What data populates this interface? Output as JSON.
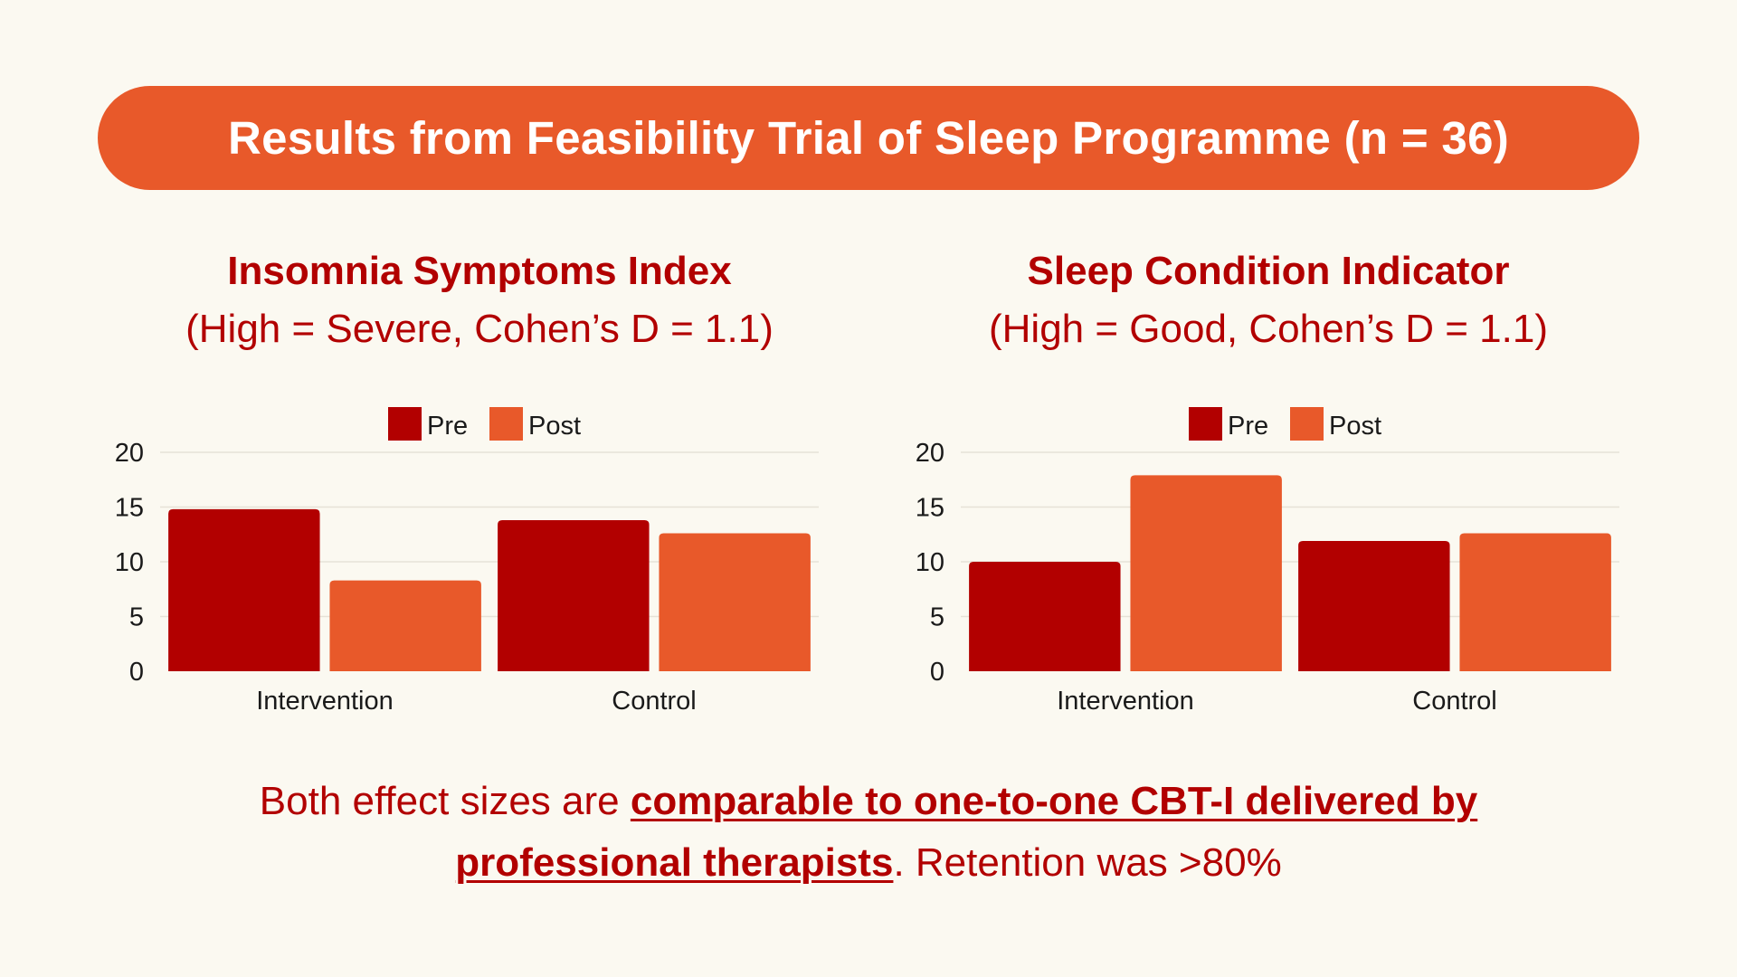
{
  "title": "Results from Feasibility Trial of Sleep Programme (n = 36)",
  "colors": {
    "pre": "#b20000",
    "post": "#e8592a",
    "text": "#b20000",
    "axis_text": "#1a1a1a",
    "grid": "#e6e2d8"
  },
  "charts": [
    {
      "heading": "Insomnia Symptoms Index",
      "subheading": "(High = Severe, Cohen’s D = 1.1)"
    },
    {
      "heading": "Sleep Condition Indicator",
      "subheading": "(High = Good, Cohen’s D = 1.1)"
    }
  ],
  "chart_data": [
    {
      "type": "bar",
      "title": "Insomnia Symptoms Index",
      "categories": [
        "Intervention",
        "Control"
      ],
      "series": [
        {
          "name": "Pre",
          "values": [
            14.8,
            13.8
          ]
        },
        {
          "name": "Post",
          "values": [
            8.3,
            12.6
          ]
        }
      ],
      "ylim": [
        0,
        20
      ],
      "yticks": [
        0,
        5,
        10,
        15,
        20
      ],
      "grid": true,
      "legend": "top-center"
    },
    {
      "type": "bar",
      "title": "Sleep Condition Indicator",
      "categories": [
        "Intervention",
        "Control"
      ],
      "series": [
        {
          "name": "Pre",
          "values": [
            10.0,
            11.9
          ]
        },
        {
          "name": "Post",
          "values": [
            17.9,
            12.6
          ]
        }
      ],
      "ylim": [
        0,
        20
      ],
      "yticks": [
        0,
        5,
        10,
        15,
        20
      ],
      "grid": true,
      "legend": "top-center"
    }
  ],
  "footer": {
    "part1": "Both effect sizes are ",
    "emphasis": "comparable to one-to-one CBT-I delivered by professional therapists",
    "part2": ". Retention was >80%"
  }
}
